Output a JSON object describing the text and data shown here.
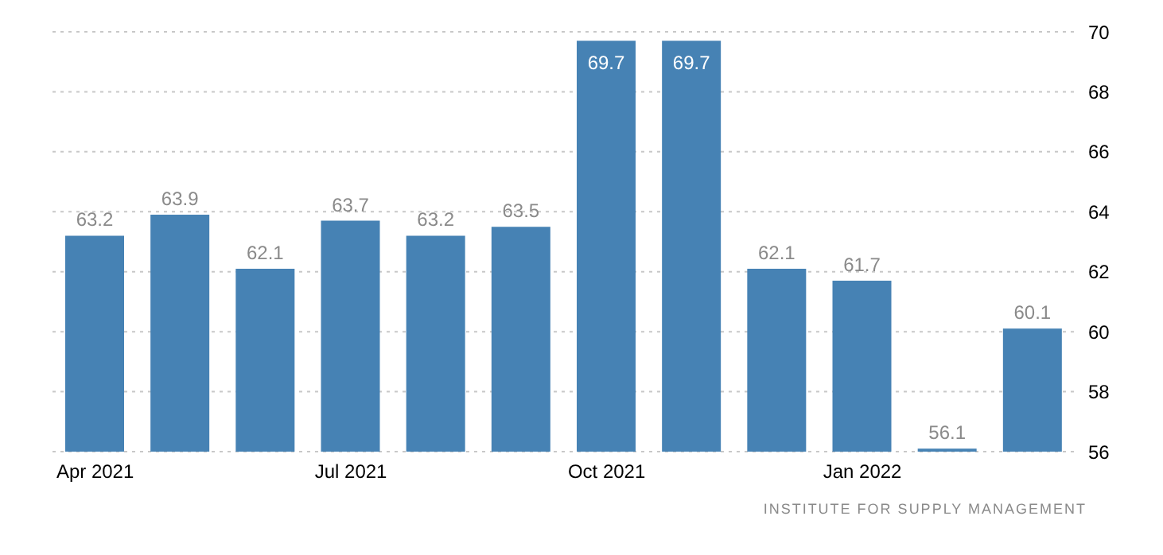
{
  "chart_data": {
    "type": "bar",
    "categories": [
      "Apr 2021",
      null,
      null,
      "Jul 2021",
      null,
      null,
      "Oct 2021",
      null,
      null,
      "Jan 2022",
      null,
      null
    ],
    "values": [
      63.2,
      63.9,
      62.1,
      63.7,
      63.2,
      63.5,
      69.7,
      69.7,
      62.1,
      61.7,
      56.1,
      60.1
    ],
    "color": "#4682b4",
    "ylim": [
      56,
      70
    ],
    "yticks": [
      56,
      58,
      60,
      62,
      64,
      66,
      68,
      70
    ],
    "grid": "y",
    "data_labels": true,
    "annotations": [
      "INSTITUTE FOR SUPPLY MANAGEMENT"
    ]
  }
}
